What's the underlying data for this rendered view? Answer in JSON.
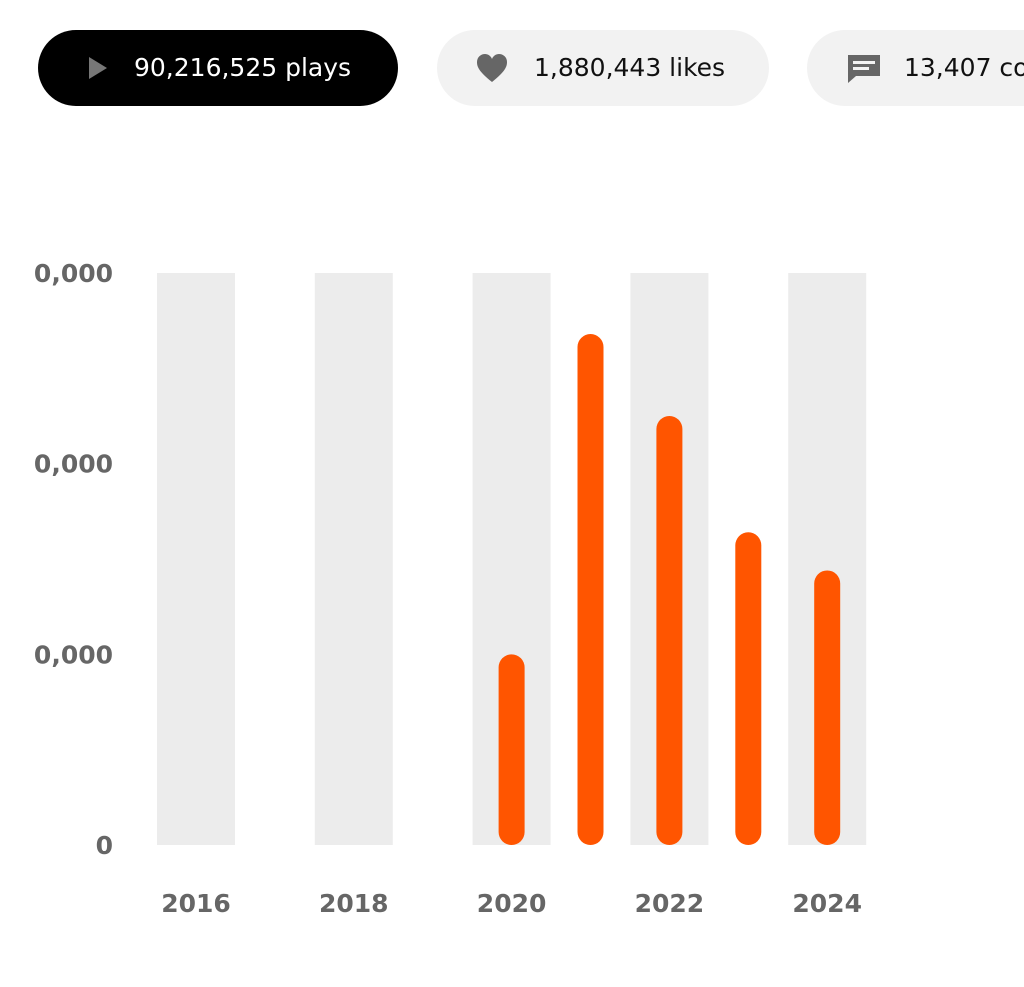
{
  "stats": [
    {
      "label": "90,216,525 plays"
    },
    {
      "label": "1,880,443 likes"
    },
    {
      "label": "13,407 co"
    }
  ],
  "chart_data": {
    "type": "bar",
    "categories": [
      "2016",
      null,
      "2018",
      null,
      "2020",
      null,
      "2022",
      null,
      "2024"
    ],
    "values": [
      null,
      null,
      null,
      null,
      10000000,
      26800000,
      22500000,
      16400000,
      14400000
    ],
    "color": "#ff5500",
    "ylim": [
      0,
      30000000
    ],
    "yticks": [
      0,
      {
        "value": 10000000,
        "label": "0,000"
      },
      {
        "value": 20000000,
        "label": "0,000"
      },
      {
        "value": 30000000,
        "label": "0,000"
      }
    ]
  }
}
